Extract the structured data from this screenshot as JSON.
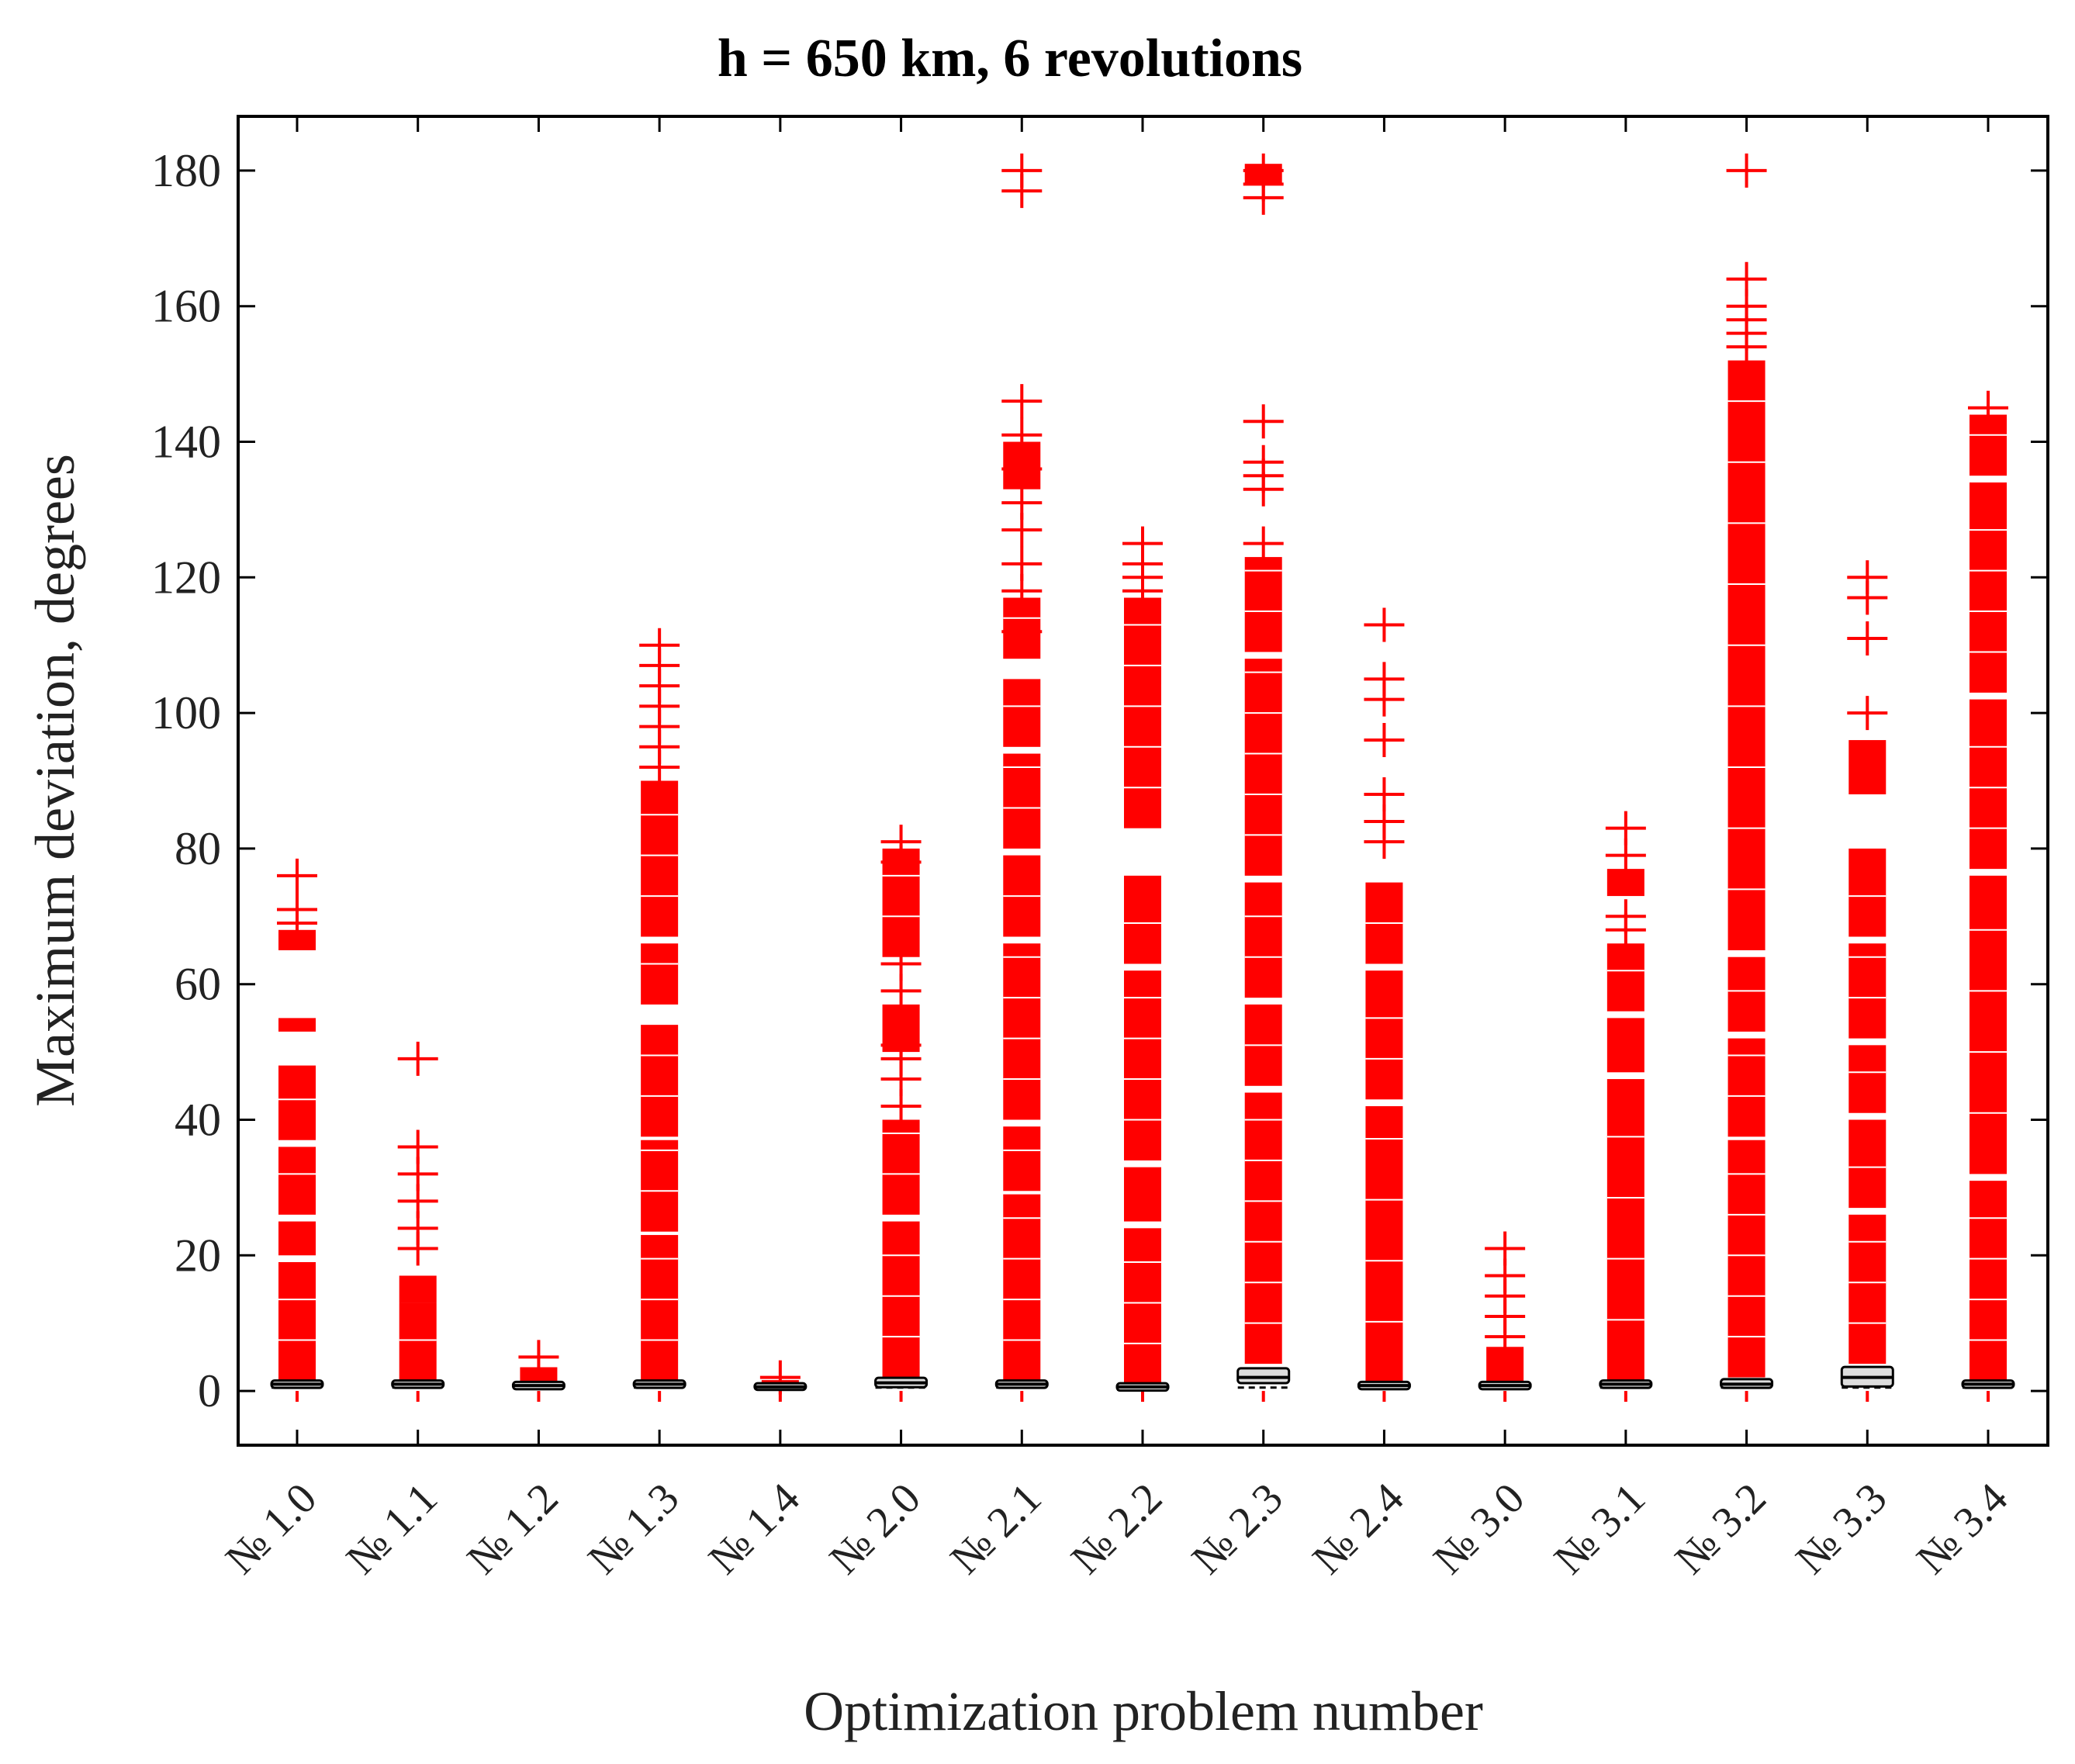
{
  "chart_data": {
    "type": "box",
    "title": "h = 650 km, 6 revolutions",
    "xlabel": "Optimization problem number",
    "ylabel": "Maximum deviation, degrees",
    "ylim": [
      -8,
      188
    ],
    "yticks": [
      0,
      20,
      40,
      60,
      80,
      100,
      120,
      140,
      160,
      180
    ],
    "categories": [
      "№ 1.0",
      "№ 1.1",
      "№ 1.2",
      "№ 1.3",
      "№ 1.4",
      "№ 2.0",
      "№ 2.1",
      "№ 2.2",
      "№ 2.3",
      "№ 2.4",
      "№ 3.0",
      "№ 3.1",
      "№ 3.2",
      "№ 3.3",
      "№ 3.4"
    ],
    "colors": {
      "outlier": "#ff0000",
      "box": "#000000",
      "box_fill": "#dddddd",
      "axis": "#000000",
      "gap": "#ffffff"
    },
    "boxes": [
      {
        "q1": 0.8,
        "median": 1.0,
        "q3": 1.2,
        "whisker_low": 0.5,
        "whisker_high": 1.5
      },
      {
        "q1": 0.8,
        "median": 1.0,
        "q3": 1.2,
        "whisker_low": 0.5,
        "whisker_high": 1.5
      },
      {
        "q1": 0.6,
        "median": 0.8,
        "q3": 1.0,
        "whisker_low": 0.4,
        "whisker_high": 1.2
      },
      {
        "q1": 0.8,
        "median": 1.0,
        "q3": 1.2,
        "whisker_low": 0.5,
        "whisker_high": 1.5
      },
      {
        "q1": 0.5,
        "median": 0.6,
        "q3": 0.8,
        "whisker_low": 0.3,
        "whisker_high": 1.0
      },
      {
        "q1": 0.9,
        "median": 1.2,
        "q3": 1.6,
        "whisker_low": 0.5,
        "whisker_high": 2.0
      },
      {
        "q1": 0.8,
        "median": 1.0,
        "q3": 1.2,
        "whisker_low": 0.5,
        "whisker_high": 1.5
      },
      {
        "q1": 0.4,
        "median": 0.6,
        "q3": 0.8,
        "whisker_low": 0.2,
        "whisker_high": 1.0
      },
      {
        "q1": 1.5,
        "median": 2.0,
        "q3": 3.0,
        "whisker_low": 0.5,
        "whisker_high": 4.0
      },
      {
        "q1": 0.6,
        "median": 0.8,
        "q3": 1.0,
        "whisker_low": 0.4,
        "whisker_high": 1.2
      },
      {
        "q1": 0.6,
        "median": 0.8,
        "q3": 1.0,
        "whisker_low": 0.4,
        "whisker_high": 1.2
      },
      {
        "q1": 0.8,
        "median": 1.0,
        "q3": 1.2,
        "whisker_low": 0.5,
        "whisker_high": 1.5
      },
      {
        "q1": 0.8,
        "median": 1.0,
        "q3": 1.4,
        "whisker_low": 0.5,
        "whisker_high": 2.0
      },
      {
        "q1": 1.0,
        "median": 2.0,
        "q3": 3.2,
        "whisker_low": 0.5,
        "whisker_high": 4.0
      },
      {
        "q1": 0.8,
        "median": 1.0,
        "q3": 1.2,
        "whisker_low": 0.5,
        "whisker_high": 1.5
      }
    ],
    "outlier_dense_ranges": [
      [
        [
          1.5,
          19
        ],
        [
          20,
          25
        ],
        [
          26,
          36
        ],
        [
          37,
          48
        ],
        [
          53,
          55
        ],
        [
          65,
          68
        ]
      ],
      [
        [
          1.5,
          13
        ],
        [
          13,
          17
        ]
      ],
      [
        [
          1.2,
          3.5
        ]
      ],
      [
        [
          1.5,
          23
        ],
        [
          23.5,
          37
        ],
        [
          37.5,
          54
        ],
        [
          57,
          66
        ],
        [
          67,
          90
        ]
      ],
      [
        [
          1.0,
          1.6
        ]
      ],
      [
        [
          2,
          25
        ],
        [
          26,
          40
        ],
        [
          50,
          57
        ],
        [
          64,
          80
        ]
      ],
      [
        [
          1.5,
          29
        ],
        [
          29.5,
          39
        ],
        [
          40,
          66
        ],
        [
          67,
          79
        ],
        [
          80,
          94
        ],
        [
          95,
          105
        ],
        [
          108,
          117
        ],
        [
          133,
          140
        ]
      ],
      [
        [
          1.0,
          24
        ],
        [
          25,
          33
        ],
        [
          34,
          62
        ],
        [
          63,
          76
        ],
        [
          83,
          117
        ]
      ],
      [
        [
          4,
          44
        ],
        [
          45,
          57
        ],
        [
          58,
          75
        ],
        [
          76,
          108
        ],
        [
          109,
          123
        ],
        [
          178,
          181
        ]
      ],
      [
        [
          1.2,
          42
        ],
        [
          43,
          62
        ],
        [
          63,
          75
        ]
      ],
      [
        [
          1.2,
          6.5
        ]
      ],
      [
        [
          1.5,
          46
        ],
        [
          47,
          55
        ],
        [
          56,
          66
        ],
        [
          73,
          77
        ]
      ],
      [
        [
          2,
          37
        ],
        [
          37.5,
          52
        ],
        [
          53,
          64
        ],
        [
          65,
          152
        ]
      ],
      [
        [
          4,
          26
        ],
        [
          27,
          40
        ],
        [
          41,
          51
        ],
        [
          52,
          66
        ],
        [
          67,
          80
        ],
        [
          88,
          96
        ]
      ],
      [
        [
          1.5,
          31
        ],
        [
          32,
          76
        ],
        [
          77,
          102
        ],
        [
          103,
          134
        ],
        [
          135,
          144
        ]
      ]
    ],
    "outliers": [
      [
        69,
        71,
        76
      ],
      [
        21,
        24,
        28,
        32,
        36,
        49
      ],
      [
        5
      ],
      [
        92,
        95,
        98,
        101,
        104,
        107,
        110
      ],
      [
        2
      ],
      [
        42,
        46,
        49,
        51,
        59,
        63,
        78,
        81
      ],
      [
        112,
        118,
        122,
        127,
        131,
        136,
        141,
        146,
        177,
        180
      ],
      [
        118,
        120,
        122,
        125
      ],
      [
        125,
        133,
        135,
        137,
        143,
        176,
        178,
        180
      ],
      [
        81,
        84,
        88,
        96,
        102,
        105,
        113
      ],
      [
        8,
        11,
        14,
        17,
        21
      ],
      [
        68,
        70,
        79,
        83
      ],
      [
        154,
        156,
        158,
        160,
        164,
        180
      ],
      [
        100,
        111,
        117,
        120
      ],
      [
        145
      ]
    ]
  }
}
